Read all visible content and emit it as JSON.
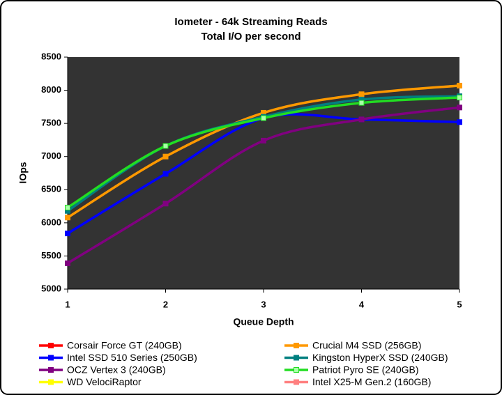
{
  "chart_data": {
    "type": "line",
    "title": "Iometer - 64k Streaming Reads",
    "subtitle": "Total I/O per second",
    "x_label": "Queue Depth",
    "y_label": "IOps",
    "x": [
      1,
      2,
      3,
      4,
      5
    ],
    "xlim": [
      1,
      5
    ],
    "xticks": [
      1,
      2,
      3,
      4,
      5
    ],
    "ylim": [
      5000,
      8500
    ],
    "yticks": [
      5000,
      5500,
      6000,
      6500,
      7000,
      7500,
      8000,
      8500
    ],
    "grid": false,
    "smooth": true,
    "series": [
      {
        "name": "Corsair Force GT (240GB)",
        "color": "#ff0000",
        "values": [
          null,
          null,
          null,
          null,
          null
        ]
      },
      {
        "name": "Crucial M4 SSD (256GB)",
        "color": "#ff9900",
        "values": [
          6080,
          7000,
          7660,
          7940,
          8070
        ]
      },
      {
        "name": "Intel SSD 510 Series (250GB)",
        "color": "#0000ff",
        "values": [
          5840,
          6740,
          7580,
          7560,
          7520
        ]
      },
      {
        "name": "Kingston HyperX SSD (240GB)",
        "color": "#008080",
        "values": [
          6180,
          7160,
          7600,
          7860,
          7910
        ]
      },
      {
        "name": "OCZ Vertex 3 (240GB)",
        "color": "#800080",
        "values": [
          5390,
          6290,
          7240,
          7560,
          7740
        ]
      },
      {
        "name": "Patriot Pyro SE (240GB)",
        "color": "#22dd22",
        "marker_color": "#aaffaa",
        "values": [
          6230,
          7160,
          7580,
          7810,
          7890
        ]
      },
      {
        "name": "WD VelociRaptor",
        "color": "#ffff00",
        "values": [
          null,
          null,
          null,
          null,
          null
        ]
      },
      {
        "name": "Intel X25-M Gen.2 (160GB)",
        "color": "#ff8080",
        "values": [
          null,
          null,
          null,
          null,
          null
        ]
      }
    ]
  }
}
